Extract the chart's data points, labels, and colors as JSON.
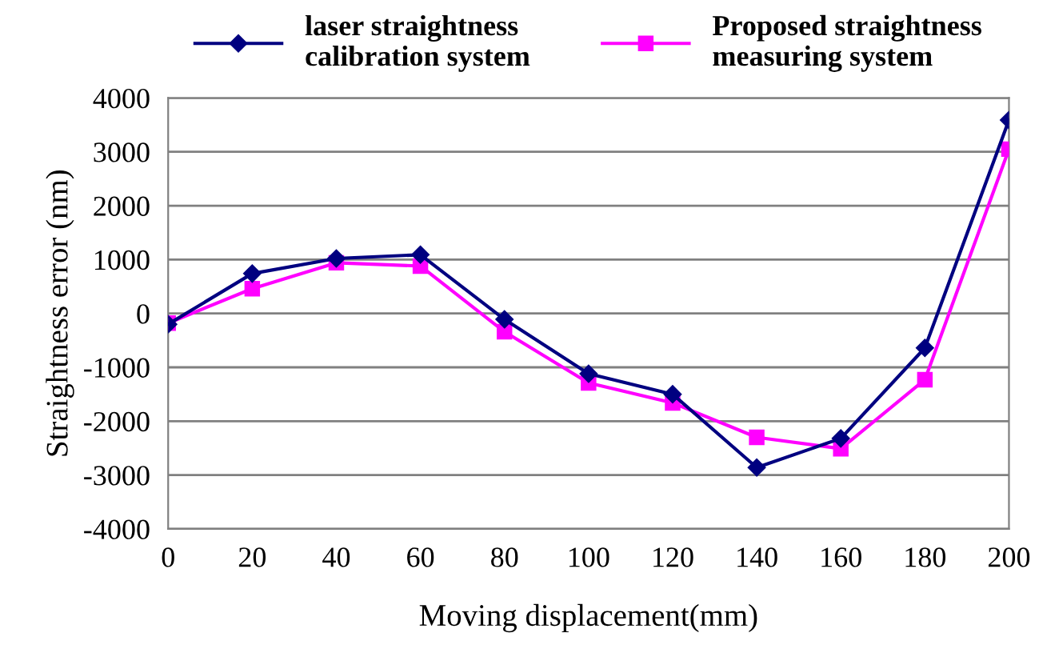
{
  "chart_data": {
    "type": "line",
    "xlabel": "Moving displacement(mm)",
    "ylabel": "Straightness error (nm)",
    "x": [
      0,
      20,
      40,
      60,
      80,
      100,
      120,
      140,
      160,
      180,
      200
    ],
    "series": [
      {
        "name": "laser straightness\ncalibration system",
        "color": "#000080",
        "marker": "diamond",
        "values": [
          -200,
          740,
          1020,
          1090,
          -110,
          -1120,
          -1500,
          -2860,
          -2320,
          -640,
          3590
        ]
      },
      {
        "name": "Proposed straightness\nmeasuring system",
        "color": "#ff00ff",
        "marker": "square",
        "values": [
          -180,
          460,
          940,
          880,
          -340,
          -1290,
          -1660,
          -2300,
          -2510,
          -1230,
          3050
        ]
      }
    ],
    "xlim": [
      0,
      200
    ],
    "xticks": [
      0,
      20,
      40,
      60,
      80,
      100,
      120,
      140,
      160,
      180,
      200
    ],
    "ylim": [
      -4000,
      4000
    ],
    "yticks": [
      -4000,
      -3000,
      -2000,
      -1000,
      0,
      1000,
      2000,
      3000,
      4000
    ],
    "grid": "y",
    "legend": "top",
    "line_style": "solid"
  }
}
